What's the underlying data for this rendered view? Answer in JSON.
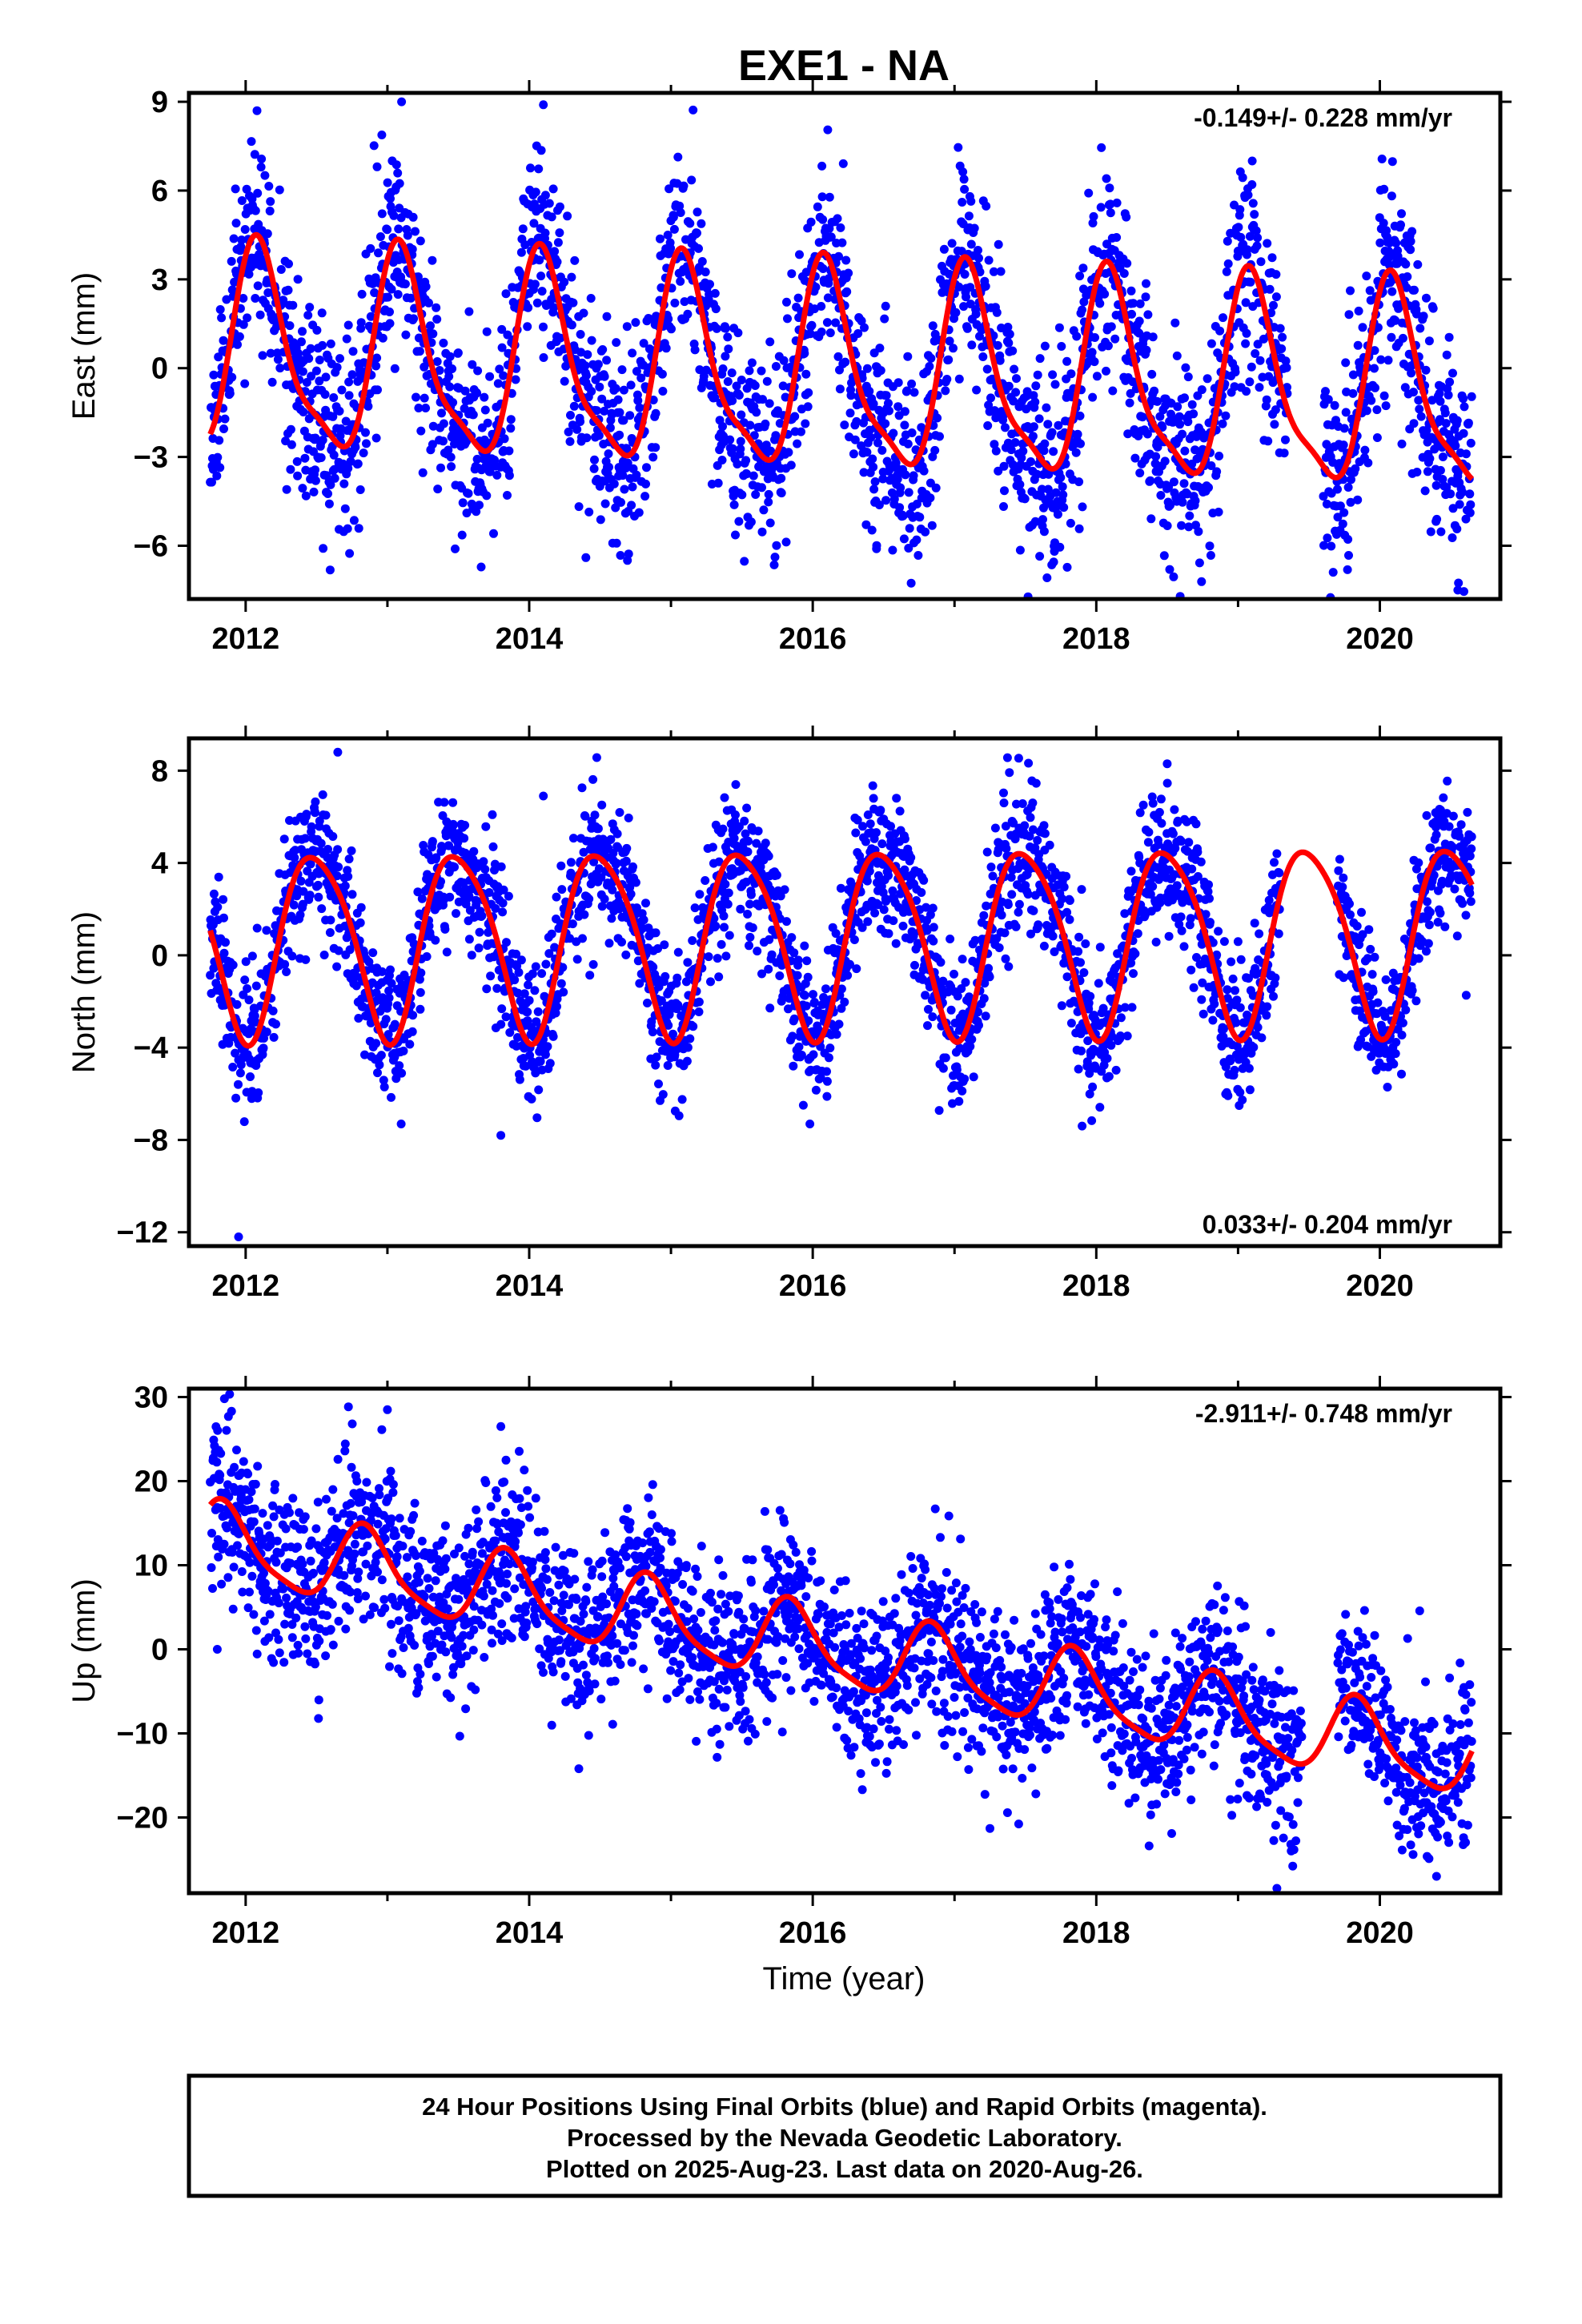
{
  "title": "EXE1 - NA",
  "xlabel": "Time (year)",
  "footer": [
    "24 Hour Positions Using Final Orbits (blue) and Rapid Orbits (magenta).",
    "Processed by the Nevada Geodetic Laboratory.",
    "Plotted on 2025-Aug-23. Last data on 2020-Aug-26."
  ],
  "colors": {
    "data_points": "#0000ff",
    "model_fit": "#ff0000",
    "frame": "#000000"
  },
  "chart_data": [
    {
      "type": "scatter",
      "component": "East",
      "ylabel": "East (mm)",
      "rate": "-0.149+/- 0.228 mm/yr",
      "rate_position": "top-right",
      "xlim": [
        2011.6,
        2020.85
      ],
      "ylim": [
        -7.8,
        9.3
      ],
      "x_ticks": [
        2012,
        2014,
        2016,
        2018,
        2020
      ],
      "y_ticks": [
        -6,
        -3,
        0,
        3,
        6,
        9
      ],
      "grid": false,
      "x_range": [
        2011.75,
        2020.65
      ],
      "model": {
        "annual_amp": 3.3,
        "annual_phase": 2012.1,
        "semi_amp": 0.9,
        "semi_phase": 2012.05,
        "y0": 0.4,
        "slope": -0.149,
        "t0": 2012.0
      },
      "scatter": 1.7,
      "seed": 11,
      "gaps": [
        [
          2019.35,
          2019.6
        ]
      ],
      "outliers": [
        [
          2012.08,
          8.7
        ],
        [
          2013.1,
          9.0
        ],
        [
          2014.1,
          8.9
        ],
        [
          2014.4,
          -6.4
        ],
        [
          2020.55,
          -7.5
        ],
        [
          2019.1,
          7.0
        ],
        [
          2016.45,
          -6.1
        ]
      ],
      "series": [
        {
          "name": "Final Orbits (blue)",
          "color": "#0000ff"
        },
        {
          "name": "fit",
          "color": "#ff0000"
        }
      ]
    },
    {
      "type": "scatter",
      "component": "North",
      "ylabel": "North (mm)",
      "rate": "0.033+/- 0.204 mm/yr",
      "rate_position": "bottom-right",
      "xlim": [
        2011.6,
        2020.85
      ],
      "ylim": [
        -12.6,
        9.4
      ],
      "x_ticks": [
        2012,
        2014,
        2016,
        2018,
        2020
      ],
      "y_ticks": [
        -12,
        -8,
        -4,
        0,
        4,
        8
      ],
      "grid": false,
      "x_range": [
        2011.75,
        2020.65
      ],
      "model": {
        "annual_amp": 4.0,
        "annual_phase": 2012.5,
        "semi_amp": 0.6,
        "semi_phase": 2012.3,
        "y0": 0.6,
        "slope": 0.033,
        "t0": 2012.0
      },
      "scatter": 1.5,
      "seed": 23,
      "gaps": [
        [
          2019.3,
          2019.7
        ]
      ],
      "outliers": [
        [
          2011.95,
          -12.2
        ],
        [
          2012.65,
          8.8
        ],
        [
          2013.8,
          -7.8
        ],
        [
          2014.1,
          6.9
        ],
        [
          2018.5,
          8.3
        ],
        [
          2017.9,
          -7.4
        ]
      ],
      "series": [
        {
          "name": "Final Orbits (blue)",
          "color": "#0000ff"
        },
        {
          "name": "fit",
          "color": "#ff0000"
        }
      ]
    },
    {
      "type": "scatter",
      "component": "Up",
      "ylabel": "Up (mm)",
      "rate": "-2.911+/- 0.748 mm/yr",
      "rate_position": "top-right",
      "xlim": [
        2011.6,
        2020.85
      ],
      "ylim": [
        -29,
        31
      ],
      "x_ticks": [
        2012,
        2014,
        2016,
        2018,
        2020
      ],
      "y_ticks": [
        -20,
        -10,
        0,
        10,
        20,
        30
      ],
      "grid": false,
      "x_range": [
        2011.75,
        2020.65
      ],
      "model": {
        "annual_amp": 4.5,
        "annual_phase": 2011.85,
        "semi_amp": 1.0,
        "semi_phase": 2011.8,
        "y0": 12.0,
        "slope": -2.911,
        "t0": 2012.0
      },
      "scatter": 5.0,
      "seed": 37,
      "gaps": [
        [
          2019.45,
          2019.7
        ]
      ],
      "outliers": [
        [
          2011.85,
          29.8
        ],
        [
          2013.0,
          28.5
        ],
        [
          2013.8,
          26.5
        ],
        [
          2014.35,
          -14.2
        ],
        [
          2017.25,
          -21.3
        ],
        [
          2020.4,
          -27.0
        ],
        [
          2011.8,
          0.0
        ]
      ],
      "series": [
        {
          "name": "Final Orbits (blue)",
          "color": "#0000ff"
        },
        {
          "name": "fit",
          "color": "#ff0000"
        }
      ]
    }
  ]
}
